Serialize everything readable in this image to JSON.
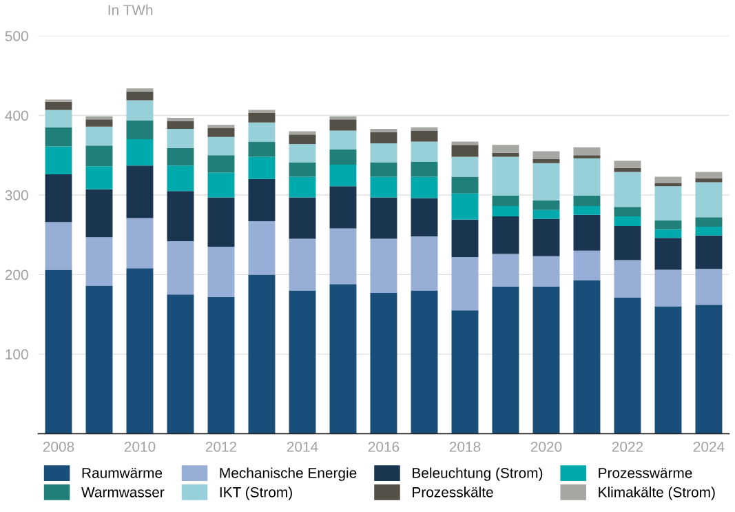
{
  "chart_data": {
    "type": "bar",
    "stacked": true,
    "ylabel": "In TWh",
    "categories": [
      "2008",
      null,
      "2010",
      null,
      "2012",
      null,
      "2014",
      null,
      "2016",
      null,
      "2018",
      null,
      "2020",
      null,
      "2022",
      null,
      "2024"
    ],
    "series": [
      {
        "name": "Raumwärme",
        "color": "#1a4e7a",
        "values": [
          206,
          186,
          208,
          175,
          172,
          200,
          180,
          188,
          177,
          180,
          155,
          185,
          185,
          193,
          171,
          160,
          162
        ]
      },
      {
        "name": "Mechanische Energie",
        "color": "#97aed6",
        "values": [
          60,
          61,
          63,
          67,
          63,
          67,
          65,
          70,
          68,
          68,
          67,
          41,
          38,
          37,
          47,
          46,
          45
        ]
      },
      {
        "name": "Beleuchtung (Strom)",
        "color": "#1a3550",
        "values": [
          60,
          60,
          66,
          63,
          62,
          53,
          52,
          53,
          52,
          48,
          47,
          47,
          47,
          45,
          43,
          40,
          42
        ]
      },
      {
        "name": "Prozesswärme",
        "color": "#00a9ac",
        "values": [
          35,
          29,
          33,
          32,
          31,
          28,
          26,
          27,
          26,
          27,
          33,
          13,
          11,
          11,
          12,
          11,
          11
        ]
      },
      {
        "name": "Warmwasser",
        "color": "#217f7a",
        "values": [
          24,
          26,
          24,
          22,
          22,
          19,
          18,
          19,
          18,
          19,
          21,
          13,
          12,
          13,
          12,
          11,
          12
        ]
      },
      {
        "name": "IKT (Strom)",
        "color": "#98d0da",
        "values": [
          22,
          24,
          25,
          24,
          23,
          24,
          23,
          24,
          24,
          25,
          25,
          49,
          47,
          47,
          44,
          43,
          44
        ]
      },
      {
        "name": "Prozesskälte",
        "color": "#545048",
        "values": [
          10,
          9,
          11,
          10,
          11,
          12,
          12,
          14,
          14,
          14,
          15,
          5,
          5,
          4,
          5,
          4,
          5
        ]
      },
      {
        "name": "Klimakälte (Strom)",
        "color": "#a6a6a2",
        "values": [
          3,
          4,
          4,
          4,
          4,
          4,
          4,
          4,
          4,
          4,
          4,
          10,
          10,
          10,
          9,
          8,
          8
        ]
      }
    ],
    "ylim": [
      0,
      500
    ],
    "yticks": [
      100,
      200,
      300,
      400,
      500
    ],
    "grid": "y",
    "legend": "bottom"
  }
}
